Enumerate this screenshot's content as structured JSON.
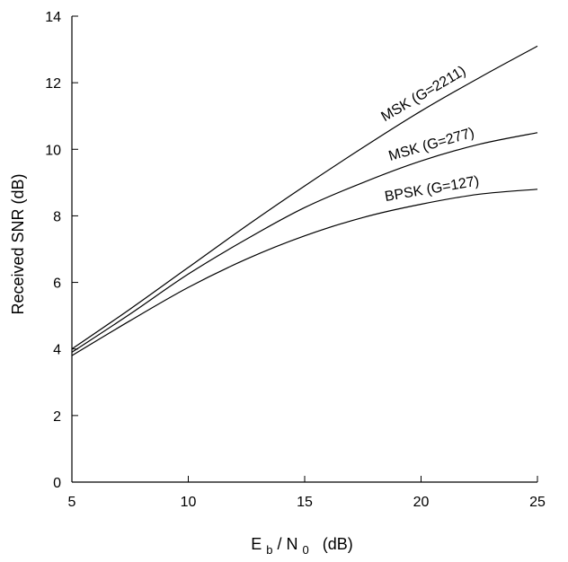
{
  "chart_data": {
    "type": "line",
    "title": "",
    "xlabel": {
      "main": "E",
      "sub_b": "b",
      "slash": "/ N",
      "sub_0": "0",
      "unit": "(dB)"
    },
    "ylabel": "Received SNR (dB)",
    "xlim": [
      5,
      25
    ],
    "ylim": [
      0,
      14
    ],
    "xticks": [
      5,
      10,
      15,
      20,
      25
    ],
    "yticks": [
      0,
      2,
      4,
      6,
      8,
      10,
      12,
      14
    ],
    "grid": false,
    "legend": "none",
    "line_color": "#000000",
    "series": [
      {
        "name": "MSK (G=2211)",
        "x": [
          5,
          7.5,
          10,
          12.5,
          15,
          17.5,
          20,
          22.5,
          25
        ],
        "y": [
          4.0,
          5.2,
          6.45,
          7.7,
          8.9,
          10.05,
          11.15,
          12.15,
          13.1
        ]
      },
      {
        "name": "MSK (G=277)",
        "x": [
          5,
          7.5,
          10,
          12.5,
          15,
          17.5,
          20,
          22.5,
          25
        ],
        "y": [
          3.9,
          5.05,
          6.25,
          7.3,
          8.25,
          9.0,
          9.65,
          10.15,
          10.5
        ]
      },
      {
        "name": "BPSK (G=127)",
        "x": [
          5,
          7.5,
          10,
          12.5,
          15,
          17.5,
          20,
          22.5,
          25
        ],
        "y": [
          3.8,
          4.85,
          5.85,
          6.7,
          7.4,
          7.95,
          8.35,
          8.65,
          8.8
        ]
      }
    ]
  }
}
